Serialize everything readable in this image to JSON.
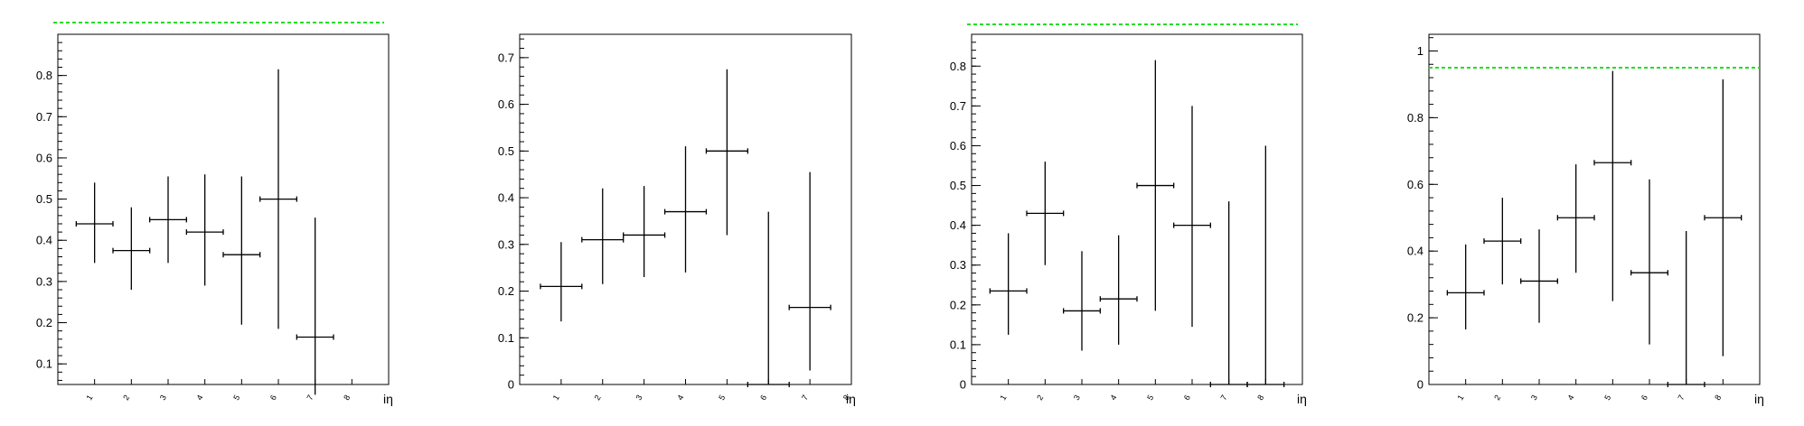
{
  "figure": {
    "background": "#ffffff",
    "reference_line_color": "#22dd22",
    "marker_color": "#000000"
  },
  "chart_data": [
    {
      "type": "scatter",
      "title": "",
      "xlabel": "iη",
      "ylabel": "",
      "xlim": [
        0,
        9
      ],
      "ylim": [
        0.05,
        0.9
      ],
      "xticks": [
        "1",
        "2",
        "3",
        "4",
        "5",
        "6",
        "7",
        "8"
      ],
      "xtick_values": [
        1,
        2,
        3,
        4,
        5,
        6,
        7,
        8
      ],
      "yticks": [
        "0.1",
        "0.2",
        "0.3",
        "0.4",
        "0.5",
        "0.6",
        "0.7",
        "0.8"
      ],
      "ytick_values": [
        0.1,
        0.2,
        0.3,
        0.4,
        0.5,
        0.6,
        0.7,
        0.8
      ],
      "reference_line": 0.95,
      "grid": false,
      "points": [
        {
          "x": 1,
          "y": 0.44,
          "lo": 0.345,
          "hi": 0.54
        },
        {
          "x": 2,
          "y": 0.375,
          "lo": 0.28,
          "hi": 0.48
        },
        {
          "x": 3,
          "y": 0.45,
          "lo": 0.345,
          "hi": 0.555
        },
        {
          "x": 4,
          "y": 0.42,
          "lo": 0.29,
          "hi": 0.56
        },
        {
          "x": 5,
          "y": 0.365,
          "lo": 0.195,
          "hi": 0.555
        },
        {
          "x": 6,
          "y": 0.5,
          "lo": 0.185,
          "hi": 0.815
        },
        {
          "x": 7,
          "y": 0.165,
          "lo": 0.025,
          "hi": 0.455
        }
      ]
    },
    {
      "type": "scatter",
      "title": "",
      "xlabel": "iη",
      "ylabel": "",
      "xlim": [
        0,
        8
      ],
      "ylim": [
        0,
        0.75
      ],
      "xticks": [
        "1",
        "2",
        "3",
        "4",
        "5",
        "6",
        "7",
        "8"
      ],
      "xtick_values": [
        1,
        2,
        3,
        4,
        5,
        6,
        7,
        8
      ],
      "yticks": [
        "0",
        "0.1",
        "0.2",
        "0.3",
        "0.4",
        "0.5",
        "0.6",
        "0.7"
      ],
      "ytick_values": [
        0,
        0.1,
        0.2,
        0.3,
        0.4,
        0.5,
        0.6,
        0.7
      ],
      "reference_line": null,
      "grid": false,
      "points": [
        {
          "x": 1,
          "y": 0.21,
          "lo": 0.135,
          "hi": 0.305
        },
        {
          "x": 2,
          "y": 0.31,
          "lo": 0.215,
          "hi": 0.42
        },
        {
          "x": 3,
          "y": 0.32,
          "lo": 0.23,
          "hi": 0.425
        },
        {
          "x": 4,
          "y": 0.37,
          "lo": 0.24,
          "hi": 0.51
        },
        {
          "x": 5,
          "y": 0.5,
          "lo": 0.32,
          "hi": 0.675
        },
        {
          "x": 6,
          "y": 0.0,
          "lo": 0.0,
          "hi": 0.37
        },
        {
          "x": 7,
          "y": 0.165,
          "lo": 0.03,
          "hi": 0.455
        }
      ]
    },
    {
      "type": "scatter",
      "title": "",
      "xlabel": "iη",
      "ylabel": "",
      "xlim": [
        0,
        9
      ],
      "ylim": [
        0,
        0.88
      ],
      "xticks": [
        "1",
        "2",
        "3",
        "4",
        "5",
        "6",
        "7",
        "8"
      ],
      "xtick_values": [
        1,
        2,
        3,
        4,
        5,
        6,
        7,
        8
      ],
      "yticks": [
        "0",
        "0.1",
        "0.2",
        "0.3",
        "0.4",
        "0.5",
        "0.6",
        "0.7",
        "0.8"
      ],
      "ytick_values": [
        0,
        0.1,
        0.2,
        0.3,
        0.4,
        0.5,
        0.6,
        0.7,
        0.8
      ],
      "reference_line": 0.95,
      "grid": false,
      "points": [
        {
          "x": 1,
          "y": 0.235,
          "lo": 0.125,
          "hi": 0.38
        },
        {
          "x": 2,
          "y": 0.43,
          "lo": 0.3,
          "hi": 0.56
        },
        {
          "x": 3,
          "y": 0.185,
          "lo": 0.085,
          "hi": 0.335
        },
        {
          "x": 4,
          "y": 0.215,
          "lo": 0.1,
          "hi": 0.375
        },
        {
          "x": 5,
          "y": 0.5,
          "lo": 0.185,
          "hi": 0.815
        },
        {
          "x": 6,
          "y": 0.4,
          "lo": 0.145,
          "hi": 0.7
        },
        {
          "x": 7,
          "y": 0.0,
          "lo": 0.0,
          "hi": 0.46
        },
        {
          "x": 8,
          "y": 0.0,
          "lo": 0.0,
          "hi": 0.6
        }
      ]
    },
    {
      "type": "scatter",
      "title": "",
      "xlabel": "iη",
      "ylabel": "",
      "xlim": [
        0,
        9
      ],
      "ylim": [
        0,
        1.05
      ],
      "xticks": [
        "1",
        "2",
        "3",
        "4",
        "5",
        "6",
        "7",
        "8"
      ],
      "xtick_values": [
        1,
        2,
        3,
        4,
        5,
        6,
        7,
        8
      ],
      "yticks": [
        "0",
        "0.2",
        "0.4",
        "0.6",
        "0.8",
        "1"
      ],
      "ytick_values": [
        0,
        0.2,
        0.4,
        0.6,
        0.8,
        1.0
      ],
      "reference_line": 0.95,
      "grid": false,
      "points": [
        {
          "x": 1,
          "y": 0.275,
          "lo": 0.165,
          "hi": 0.42
        },
        {
          "x": 2,
          "y": 0.43,
          "lo": 0.3,
          "hi": 0.56
        },
        {
          "x": 3,
          "y": 0.31,
          "lo": 0.185,
          "hi": 0.465
        },
        {
          "x": 4,
          "y": 0.5,
          "lo": 0.335,
          "hi": 0.66
        },
        {
          "x": 5,
          "y": 0.665,
          "lo": 0.25,
          "hi": 0.94
        },
        {
          "x": 6,
          "y": 0.335,
          "lo": 0.12,
          "hi": 0.615
        },
        {
          "x": 7,
          "y": 0.0,
          "lo": 0.0,
          "hi": 0.46
        },
        {
          "x": 8,
          "y": 0.5,
          "lo": 0.085,
          "hi": 0.915
        }
      ]
    }
  ]
}
